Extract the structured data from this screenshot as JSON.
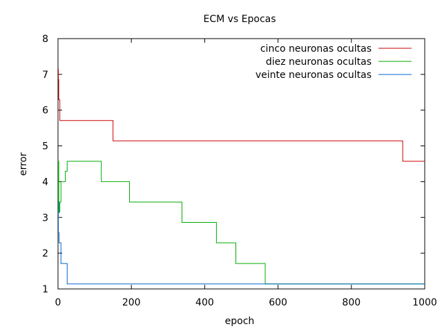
{
  "chart_data": {
    "type": "line",
    "title": "ECM vs Epocas",
    "xlabel": "epoch",
    "ylabel": "error",
    "xlim": [
      0,
      1000
    ],
    "ylim": [
      1,
      8
    ],
    "xticks": [
      0,
      200,
      400,
      600,
      800,
      1000
    ],
    "yticks": [
      1,
      2,
      3,
      4,
      5,
      6,
      7,
      8
    ],
    "grid": false,
    "legend_position": "top-right",
    "series": [
      {
        "name": "cinco neuronas ocultas",
        "color": "#cc0000",
        "step": true,
        "points": [
          [
            0,
            7.14
          ],
          [
            1,
            6.86
          ],
          [
            2,
            6.29
          ],
          [
            5,
            5.71
          ],
          [
            150,
            5.14
          ],
          [
            940,
            4.57
          ],
          [
            1000,
            4.57
          ]
        ]
      },
      {
        "name": "diez neuronas ocultas",
        "color": "#00aa00",
        "step": true,
        "points": [
          [
            0,
            2.86
          ],
          [
            1,
            4.57
          ],
          [
            2,
            3.43
          ],
          [
            3,
            3.14
          ],
          [
            5,
            3.43
          ],
          [
            8,
            4.0
          ],
          [
            20,
            4.29
          ],
          [
            25,
            4.57
          ],
          [
            118,
            4.0
          ],
          [
            195,
            3.43
          ],
          [
            338,
            2.86
          ],
          [
            432,
            2.29
          ],
          [
            485,
            1.71
          ],
          [
            565,
            1.14
          ],
          [
            1000,
            1.14
          ]
        ]
      },
      {
        "name": "veinte neuronas ocultas",
        "color": "#0066cc",
        "step": true,
        "points": [
          [
            0,
            3.43
          ],
          [
            1,
            2.57
          ],
          [
            3,
            2.29
          ],
          [
            8,
            1.71
          ],
          [
            25,
            1.14
          ],
          [
            1000,
            1.14
          ]
        ]
      }
    ]
  }
}
